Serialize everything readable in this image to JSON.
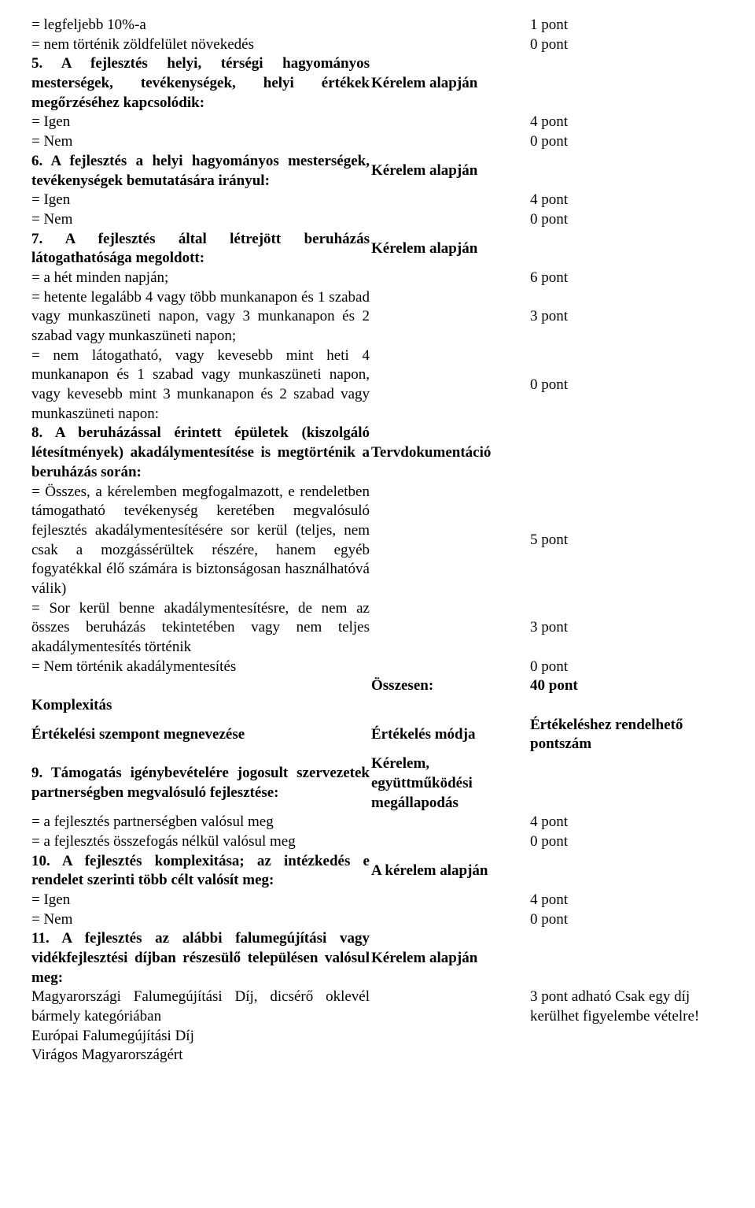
{
  "rows": [
    {
      "left": "= legfeljebb 10%-a",
      "mid": "",
      "right": "1 pont"
    },
    {
      "left": "= nem történik zöldfelület növekedés",
      "mid": "",
      "right": "0 pont"
    },
    {
      "left": "5. A fejlesztés helyi, térségi hagyományos mesterségek, tevékenységek, helyi értékek megőrzéséhez kapcsolódik:",
      "mid": "Kérelem alapján",
      "right": "",
      "bold": true,
      "justify": true
    },
    {
      "left": "= Igen",
      "mid": "",
      "right": "4 pont"
    },
    {
      "left": "= Nem",
      "mid": "",
      "right": "0 pont"
    },
    {
      "left": "6. A fejlesztés a helyi hagyományos mesterségek, tevékenységek bemutatására irányul:",
      "mid": "Kérelem alapján",
      "right": "",
      "bold": true,
      "justify": true
    },
    {
      "left": "= Igen",
      "mid": "",
      "right": "4 pont"
    },
    {
      "left": "= Nem",
      "mid": "",
      "right": "0 pont"
    },
    {
      "left": "7. A fejlesztés által létrejött beruházás látogathatósága megoldott:",
      "mid": "Kérelem alapján",
      "right": "",
      "bold": true,
      "justify": true
    },
    {
      "left": "= a hét minden napján;",
      "mid": "",
      "right": "6 pont"
    },
    {
      "left": "= hetente legalább 4 vagy több munkanapon és 1 szabad vagy munkaszüneti napon, vagy 3 munkanapon és 2 szabad vagy munkaszüneti napon;",
      "mid": "",
      "right": "3 pont",
      "justify": true
    },
    {
      "left": "= nem látogatható, vagy kevesebb mint heti 4 munkanapon és 1 szabad vagy munkaszüneti napon, vagy kevesebb mint 3 munkanapon és 2 szabad vagy munkaszüneti napon:",
      "mid": "",
      "right": "0 pont",
      "justify": true
    },
    {
      "left": "8. A beruházással érintett épületek (kiszolgáló létesítmények) akadálymentesítése is megtörténik a beruházás során:",
      "mid": "Tervdokumentáció",
      "right": "",
      "bold": true,
      "justify": true
    },
    {
      "left": "= Összes, a kérelemben megfogalmazott, e rendeletben támogatható tevékenység keretében megvalósuló fejlesztés akadálymentesítésére sor kerül (teljes, nem csak a mozgássérültek részére, hanem egyéb fogyatékkal élő számára is biztonságosan használhatóvá válik)",
      "mid": "",
      "right": "5 pont",
      "justify": true
    },
    {
      "left": "= Sor kerül benne akadálymentesítésre, de nem az összes beruházás tekintetében vagy nem teljes akadálymentesítés történik",
      "mid": "",
      "right": "3 pont",
      "justify": true
    },
    {
      "left": "= Nem történik akadálymentesítés",
      "mid": "",
      "right": "0 pont"
    },
    {
      "left": "",
      "mid": "Összesen:",
      "right": "40 pont",
      "bold": true,
      "midbold": true
    },
    {
      "left": "Komplexitás",
      "mid": "",
      "right": "",
      "bold": true
    },
    {
      "left": "Értékelési szempont megnevezése",
      "mid": "Értékelés módja",
      "right": "Értékeléshez rendelhető pontszám",
      "bold": true,
      "midbold": true
    },
    {
      "left": "9. Támogatás igénybevételére jogosult szervezetek partnerségben megvalósuló fejlesztése:",
      "mid": "Kérelem, együttműködési megállapodás",
      "right": "",
      "bold": true,
      "midbold": true,
      "justify": true
    },
    {
      "left": "= a fejlesztés partnerségben valósul meg",
      "mid": "",
      "right": "4 pont"
    },
    {
      "left": "= a fejlesztés összefogás nélkül valósul meg",
      "mid": "",
      "right": "0 pont"
    },
    {
      "left": "10. A fejlesztés komplexitása; az intézkedés e rendelet szerinti több célt valósít meg:",
      "mid": "A kérelem alapján",
      "right": "",
      "bold": true,
      "midbold": true,
      "justify": true
    },
    {
      "left": "= Igen",
      "mid": "",
      "right": "4 pont"
    },
    {
      "left": "= Nem",
      "mid": "",
      "right": "0 pont"
    },
    {
      "left": "11. A fejlesztés az alábbi falumegújítási vagy vidékfejlesztési díjban részesülő településen valósul meg:",
      "mid": "Kérelem alapján",
      "right": "",
      "bold": true,
      "midbold": true,
      "justify": true
    },
    {
      "left": "Magyarországi Falumegújítási Díj, dicsérő oklevél bármely kategóriában",
      "mid": "",
      "right": "3 pont adható Csak egy díj kerülhet figyelembe vételre!",
      "justify": true,
      "r3": true
    },
    {
      "left": "Európai Falumegújítási Díj",
      "mid": "",
      "right": ""
    },
    {
      "left": "Virágos Magyarországért",
      "mid": "",
      "right": ""
    }
  ]
}
